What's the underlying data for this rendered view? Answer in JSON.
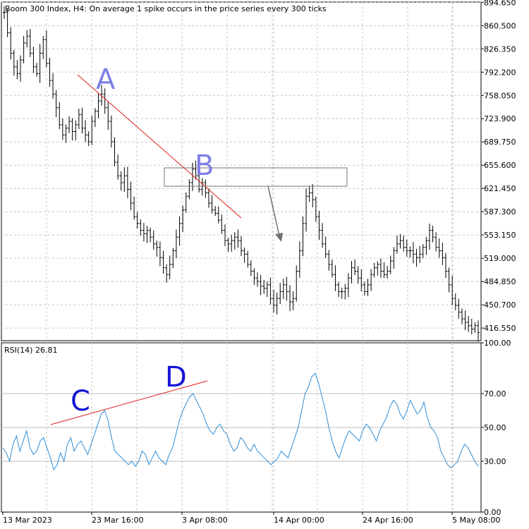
{
  "header": {
    "title": "Boom 300 Index, H4:  On average 1 spike occurs in the price series every 300 ticks"
  },
  "rsi": {
    "label": "RSI(14) 26.81"
  },
  "colors": {
    "bars": "#000000",
    "grid": "#c8c8c8",
    "rsi_line": "#2f8fd6",
    "trendline": "#e01919",
    "annot_ab": "#7f7fe8",
    "annot_cd": "#1515d8",
    "arrow": "#707070",
    "box": "#707070"
  },
  "annotations": {
    "A": "A",
    "B": "B",
    "C": "C",
    "D": "D"
  },
  "chart_data": [
    {
      "type": "ohlc",
      "title": "Boom 300 Index, H4:  On average 1 spike occurs in the price series every 300 ticks",
      "ylim": [
        398.0,
        895.0
      ],
      "y_ticks": [
        "894.650",
        "860.500",
        "826.350",
        "792.200",
        "758.050",
        "723.900",
        "689.750",
        "655.600",
        "621.450",
        "587.300",
        "553.150",
        "519.000",
        "484.850",
        "450.700",
        "416.550"
      ],
      "x_ticks": [
        "13 Mar 2023",
        "23 Mar 16:00",
        "3 Apr 08:00",
        "14 Apr 00:00",
        "24 Apr 16:00",
        "5 May 08:00"
      ],
      "closes": [
        880,
        850,
        820,
        800,
        790,
        810,
        835,
        845,
        820,
        800,
        790,
        820,
        840,
        805,
        780,
        760,
        740,
        715,
        700,
        710,
        720,
        705,
        715,
        730,
        710,
        700,
        690,
        720,
        735,
        750,
        760,
        740,
        720,
        690,
        660,
        640,
        630,
        640,
        620,
        600,
        580,
        570,
        560,
        555,
        560,
        550,
        540,
        535,
        520,
        505,
        495,
        510,
        530,
        550,
        570,
        590,
        610,
        630,
        650,
        640,
        620,
        630,
        615,
        600,
        590,
        585,
        575,
        560,
        545,
        540,
        545,
        550,
        545,
        530,
        525,
        510,
        500,
        490,
        485,
        478,
        475,
        480,
        460,
        450,
        460,
        470,
        480,
        470,
        455,
        460,
        500,
        530,
        570,
        610,
        615,
        605,
        580,
        560,
        540,
        525,
        510,
        495,
        480,
        470,
        470,
        475,
        490,
        505,
        500,
        490,
        480,
        470,
        480,
        495,
        505,
        510,
        500,
        495,
        500,
        515,
        530,
        540,
        545,
        535,
        530,
        530,
        525,
        520,
        525,
        535,
        545,
        560,
        550,
        535,
        530,
        520,
        500,
        480,
        460,
        450,
        440,
        430,
        425,
        420,
        415,
        420,
        410
      ]
    },
    {
      "type": "line",
      "title": "RSI(14) 26.81",
      "ylim": [
        0,
        100
      ],
      "y_ticks": [
        "100.00",
        "70.00",
        "50.00",
        "30.00",
        "0.00"
      ],
      "series": [
        {
          "values": [
            38,
            35,
            30,
            40,
            45,
            36,
            42,
            48,
            38,
            34,
            36,
            42,
            44,
            38,
            32,
            25,
            28,
            35,
            30,
            40,
            44,
            36,
            40,
            42,
            38,
            34,
            40,
            46,
            52,
            58,
            60,
            54,
            44,
            36,
            34,
            32,
            30,
            28,
            30,
            27,
            30,
            36,
            34,
            28,
            32,
            36,
            32,
            30,
            28,
            34,
            38,
            46,
            54,
            60,
            64,
            68,
            70,
            66,
            62,
            58,
            52,
            48,
            46,
            50,
            52,
            48,
            46,
            40,
            36,
            38,
            44,
            42,
            38,
            36,
            40,
            36,
            34,
            32,
            30,
            28,
            30,
            32,
            36,
            34,
            32,
            38,
            44,
            50,
            60,
            70,
            74,
            80,
            82,
            76,
            68,
            60,
            50,
            42,
            36,
            32,
            38,
            44,
            48,
            46,
            44,
            42,
            48,
            52,
            50,
            46,
            42,
            48,
            52,
            56,
            62,
            66,
            64,
            58,
            55,
            60,
            66,
            62,
            58,
            60,
            65,
            56,
            50,
            48,
            44,
            36,
            32,
            28,
            26,
            28,
            30,
            36,
            40,
            38,
            34,
            30,
            27
          ]
        }
      ],
      "levels": [
        70,
        50,
        30
      ]
    }
  ]
}
